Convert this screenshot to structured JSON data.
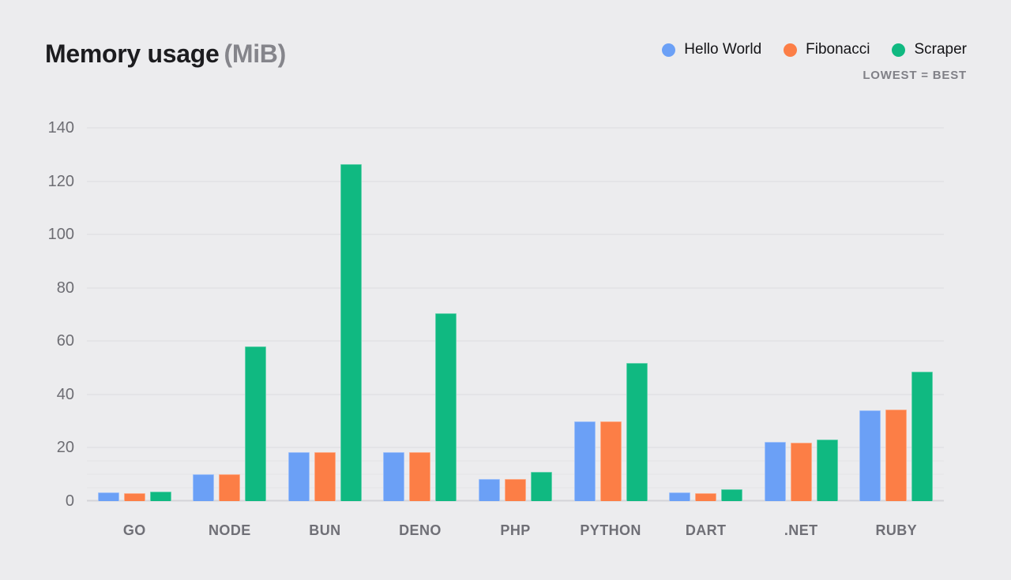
{
  "chart_data": {
    "type": "bar",
    "title": "Memory usage",
    "unit": "(MiB)",
    "note": "LOWEST = BEST",
    "categories": [
      "GO",
      "NODE",
      "BUN",
      "DENO",
      "PHP",
      "PYTHON",
      "DART",
      ".NET",
      "RUBY"
    ],
    "series": [
      {
        "name": "Hello World",
        "color": "#6ba0f6",
        "values": [
          3.2,
          10.1,
          18.3,
          18.3,
          8.2,
          30.0,
          3.2,
          22.3,
          34.0
        ]
      },
      {
        "name": "Fibonacci",
        "color": "#fc7e46",
        "values": [
          2.9,
          10.1,
          18.3,
          18.3,
          8.2,
          29.8,
          3.0,
          22.0,
          34.2
        ]
      },
      {
        "name": "Scraper",
        "color": "#10b981",
        "values": [
          3.5,
          58.0,
          126.3,
          70.5,
          10.9,
          51.8,
          4.3,
          23.0,
          48.5
        ]
      }
    ],
    "xlabel": "",
    "ylabel": "",
    "ylim": [
      0,
      140
    ],
    "y_ticks": [
      0,
      20,
      40,
      60,
      80,
      100,
      120,
      140
    ],
    "minor_ticks": [
      5,
      10,
      15
    ],
    "grid": true,
    "legend_position": "top-right",
    "colors": {
      "background": "#ececee",
      "gridline": "#dcdce0",
      "baseline": "#d3d3d8",
      "title_text": "#1c1c1f",
      "muted_text": "#6f6f76"
    }
  }
}
